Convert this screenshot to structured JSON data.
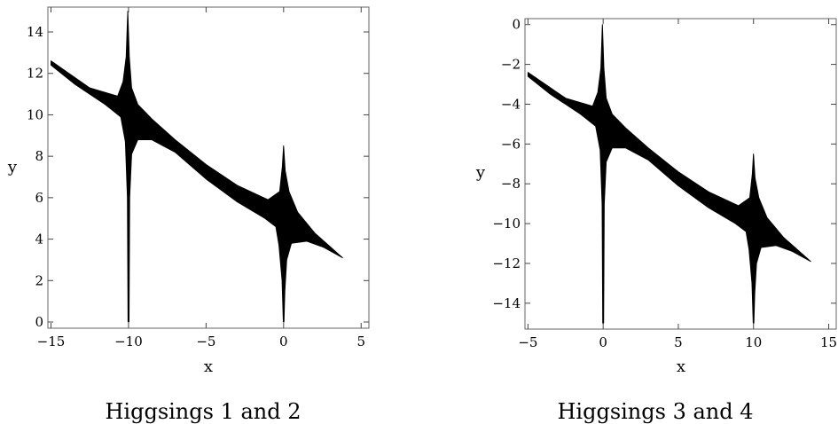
{
  "chart_data": [
    {
      "type": "area",
      "caption": "Higgsings 1 and 2",
      "xlabel": "x",
      "ylabel": "y",
      "xlim": [
        -15.2,
        5.5
      ],
      "ylim": [
        -0.3,
        15.2
      ],
      "xticks": [
        -15,
        -10,
        -5,
        0,
        5
      ],
      "yticks": [
        0,
        2,
        4,
        6,
        8,
        10,
        12,
        14
      ],
      "xtick_labels": [
        "−15",
        "−10",
        "−5",
        "0",
        "5"
      ],
      "ytick_labels": [
        "0",
        "2",
        "4",
        "6",
        "8",
        "10",
        "12",
        "14"
      ],
      "color": "#000000",
      "region": {
        "outline": [
          [
            -15,
            12.6
          ],
          [
            -12.5,
            11.3
          ],
          [
            -10.7,
            10.9
          ],
          [
            -10.35,
            11.6
          ],
          [
            -10.15,
            12.8
          ],
          [
            -10.05,
            15.0
          ],
          [
            -9.95,
            12.8
          ],
          [
            -9.8,
            11.3
          ],
          [
            -9.4,
            10.5
          ],
          [
            -8.5,
            9.8
          ],
          [
            -7,
            8.8
          ],
          [
            -5,
            7.6
          ],
          [
            -3,
            6.6
          ],
          [
            -1,
            5.9
          ],
          [
            -0.25,
            6.3
          ],
          [
            -0.08,
            7.5
          ],
          [
            0,
            8.5
          ],
          [
            0.1,
            7.3
          ],
          [
            0.35,
            6.3
          ],
          [
            0.9,
            5.3
          ],
          [
            2,
            4.3
          ],
          [
            3.8,
            3.1
          ],
          [
            2.6,
            3.6
          ],
          [
            1.5,
            3.9
          ],
          [
            0.5,
            3.8
          ],
          [
            0.2,
            3.0
          ],
          [
            0.08,
            1.5
          ],
          [
            0.02,
            0
          ],
          [
            -0.02,
            0
          ],
          [
            -0.1,
            2.0
          ],
          [
            -0.3,
            3.7
          ],
          [
            -0.5,
            4.6
          ],
          [
            -1.2,
            5.0
          ],
          [
            -3,
            5.8
          ],
          [
            -5,
            6.9
          ],
          [
            -7,
            8.2
          ],
          [
            -8.5,
            8.8
          ],
          [
            -9.4,
            8.8
          ],
          [
            -9.8,
            8.1
          ],
          [
            -9.93,
            6.0
          ],
          [
            -9.97,
            0
          ],
          [
            -10.03,
            0
          ],
          [
            -10.07,
            6.0
          ],
          [
            -10.2,
            8.7
          ],
          [
            -10.5,
            9.9
          ],
          [
            -11.5,
            10.5
          ],
          [
            -13.5,
            11.5
          ],
          [
            -15,
            12.4
          ]
        ]
      }
    },
    {
      "type": "area",
      "caption": "Higgsings 3 and 4",
      "xlabel": "x",
      "ylabel": "y",
      "xlim": [
        -5.2,
        15.5
      ],
      "ylim": [
        -15.3,
        0.3
      ],
      "xticks": [
        -5,
        0,
        5,
        10,
        15
      ],
      "yticks": [
        0,
        -2,
        -4,
        -6,
        -8,
        -10,
        -12,
        -14
      ],
      "xtick_labels": [
        "−5",
        "0",
        "5",
        "10",
        "15"
      ],
      "ytick_labels": [
        "0",
        "−2",
        "−4",
        "−6",
        "−8",
        "−10",
        "−12",
        "−14"
      ],
      "color": "#000000",
      "region": {
        "outline": [
          [
            -5,
            -2.4
          ],
          [
            -2.5,
            -3.7
          ],
          [
            -0.7,
            -4.1
          ],
          [
            -0.35,
            -3.4
          ],
          [
            -0.15,
            -2.2
          ],
          [
            -0.05,
            0
          ],
          [
            0.05,
            -2.2
          ],
          [
            0.2,
            -3.7
          ],
          [
            0.6,
            -4.5
          ],
          [
            1.5,
            -5.2
          ],
          [
            3,
            -6.2
          ],
          [
            5,
            -7.4
          ],
          [
            7,
            -8.4
          ],
          [
            9,
            -9.1
          ],
          [
            9.75,
            -8.7
          ],
          [
            9.92,
            -7.5
          ],
          [
            10,
            -6.5
          ],
          [
            10.1,
            -7.7
          ],
          [
            10.35,
            -8.7
          ],
          [
            10.9,
            -9.7
          ],
          [
            12,
            -10.7
          ],
          [
            13.8,
            -11.9
          ],
          [
            12.6,
            -11.4
          ],
          [
            11.5,
            -11.1
          ],
          [
            10.5,
            -11.2
          ],
          [
            10.2,
            -12.0
          ],
          [
            10.08,
            -13.5
          ],
          [
            10.02,
            -15
          ],
          [
            9.98,
            -15
          ],
          [
            9.9,
            -13.0
          ],
          [
            9.7,
            -11.3
          ],
          [
            9.5,
            -10.4
          ],
          [
            8.8,
            -10.0
          ],
          [
            7,
            -9.2
          ],
          [
            5,
            -8.1
          ],
          [
            3,
            -6.8
          ],
          [
            1.5,
            -6.2
          ],
          [
            0.6,
            -6.2
          ],
          [
            0.2,
            -6.9
          ],
          [
            0.07,
            -9.0
          ],
          [
            0.03,
            -15
          ],
          [
            -0.03,
            -15
          ],
          [
            -0.07,
            -9.0
          ],
          [
            -0.2,
            -6.3
          ],
          [
            -0.5,
            -5.1
          ],
          [
            -1.5,
            -4.5
          ],
          [
            -3.5,
            -3.5
          ],
          [
            -5,
            -2.6
          ]
        ]
      }
    }
  ]
}
